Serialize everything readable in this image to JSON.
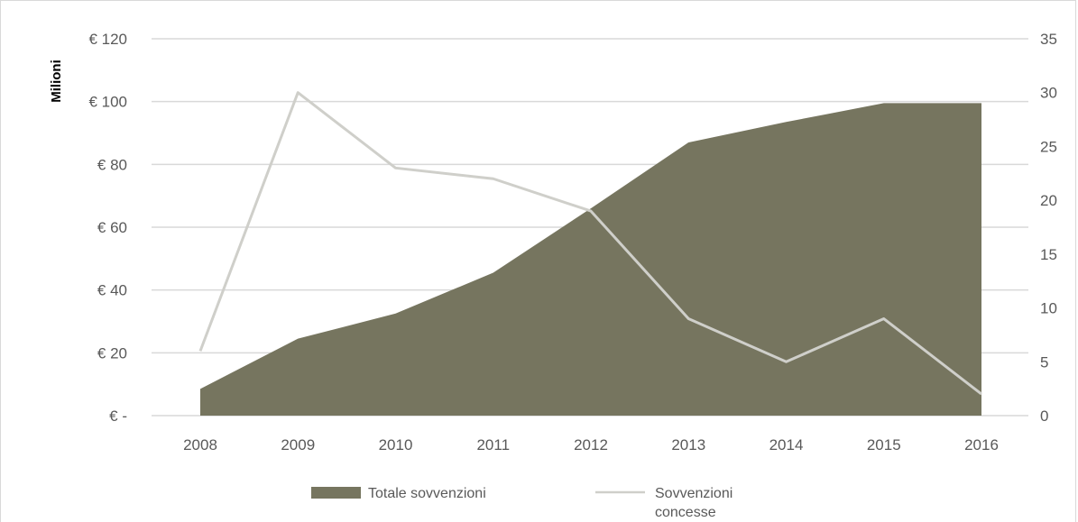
{
  "chart_data": {
    "type": "area+line",
    "categories": [
      "2008",
      "2009",
      "2010",
      "2011",
      "2012",
      "2013",
      "2014",
      "2015",
      "2016"
    ],
    "y_left": {
      "label": "Milioni",
      "ylim": [
        0,
        120
      ],
      "ticks": [
        0,
        20,
        40,
        60,
        80,
        100,
        120
      ],
      "tick_labels": [
        "€ -",
        "€ 20",
        "€ 40",
        "€ 60",
        "€ 80",
        "€ 100",
        "€ 120"
      ]
    },
    "y_right": {
      "ylim": [
        0,
        35
      ],
      "ticks": [
        0,
        5,
        10,
        15,
        20,
        25,
        30,
        35
      ],
      "tick_labels": [
        "0",
        "5",
        "10",
        "15",
        "20",
        "25",
        "30",
        "35"
      ]
    },
    "series": [
      {
        "name": "Totale sovvenzioni",
        "type": "area",
        "axis": "left",
        "color": "#76755f",
        "values": [
          8.5,
          24.5,
          32.5,
          45.5,
          66,
          87,
          93.5,
          99.5,
          99.5
        ]
      },
      {
        "name": "Sovvenzioni concesse",
        "type": "line",
        "axis": "right",
        "color": "#cfcfca",
        "values": [
          6,
          30,
          23,
          22,
          19,
          9,
          5,
          9,
          2
        ]
      }
    ],
    "legend": {
      "position": "bottom",
      "items": [
        "Totale sovvenzioni",
        "Sovvenzioni concesse"
      ]
    },
    "grid": true
  }
}
